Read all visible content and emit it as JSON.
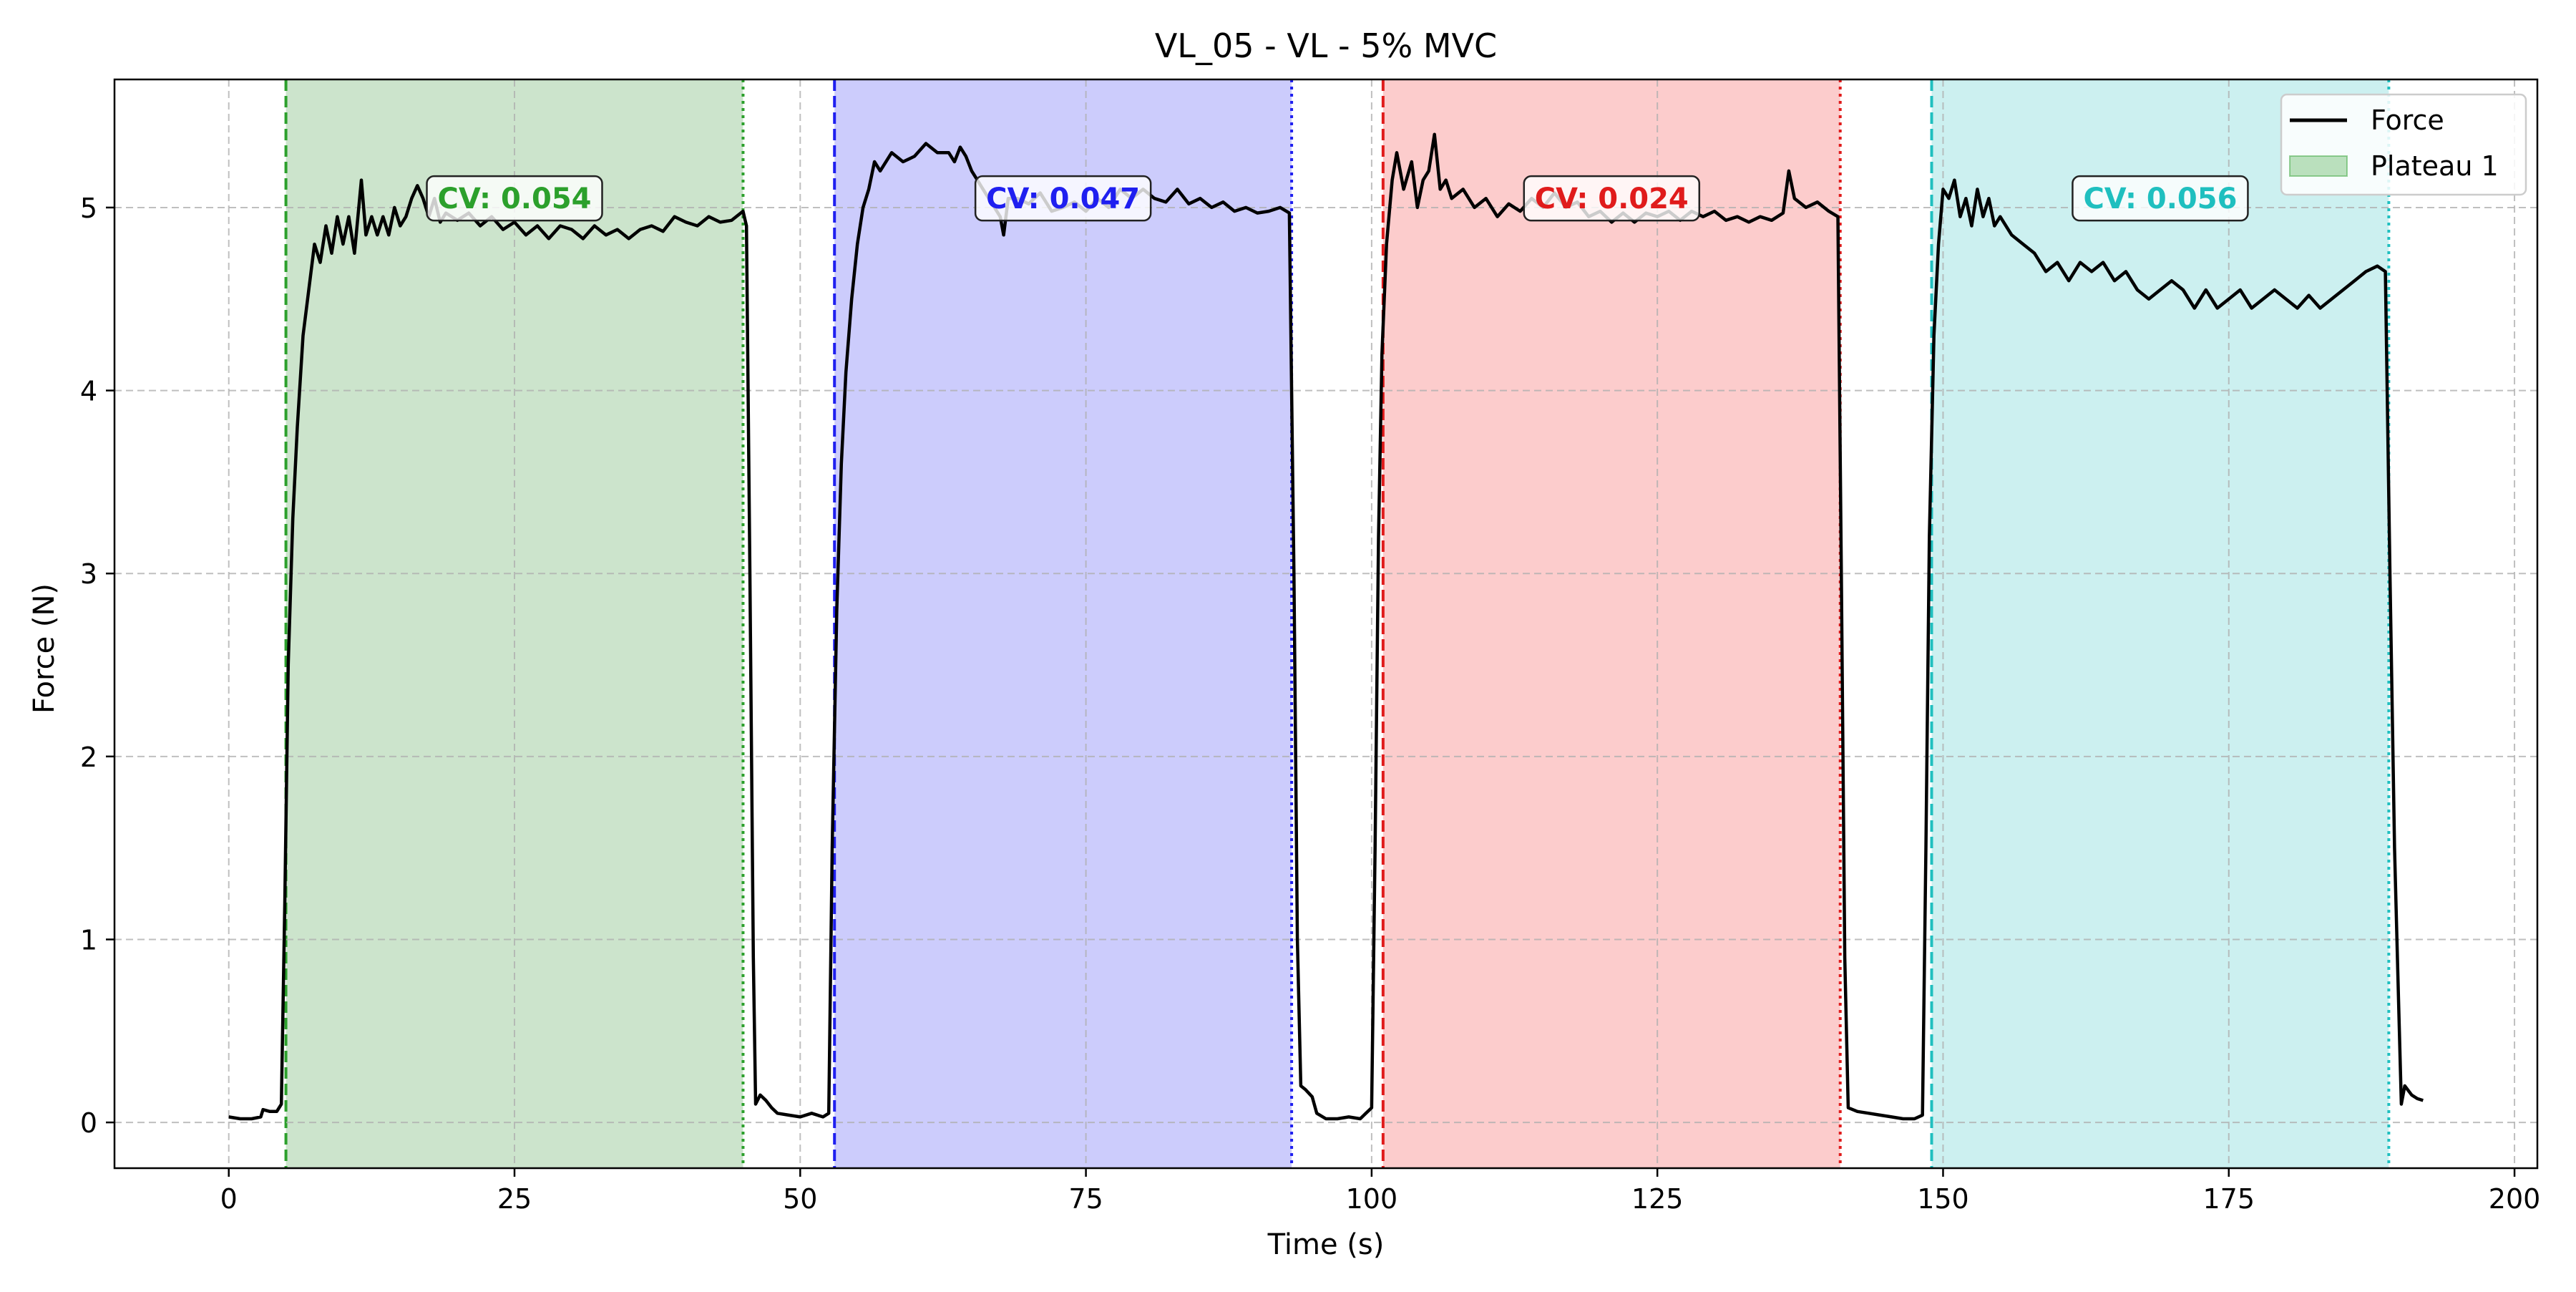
{
  "chart_data": {
    "type": "line",
    "title": "VL_05 - VL - 5% MVC",
    "xlabel": "Time (s)",
    "ylabel": "Force (N)",
    "xlim": [
      -10,
      202
    ],
    "ylim": [
      -0.25,
      5.7
    ],
    "xticks": [
      0,
      25,
      50,
      75,
      100,
      125,
      150,
      175,
      200
    ],
    "yticks": [
      0,
      1,
      2,
      3,
      4,
      5
    ],
    "grid": true,
    "legend": {
      "placement": "top-right",
      "entries": [
        {
          "label": "Force",
          "kind": "line",
          "color": "#000000"
        },
        {
          "label": "Plateau 1",
          "kind": "patch",
          "color": "#2ca02c"
        }
      ]
    },
    "series": [
      {
        "name": "Force",
        "color": "#000000",
        "points": [
          [
            0,
            0.03
          ],
          [
            1,
            0.02
          ],
          [
            2,
            0.02
          ],
          [
            2.8,
            0.03
          ],
          [
            3,
            0.07
          ],
          [
            3.6,
            0.06
          ],
          [
            4.2,
            0.06
          ],
          [
            4.6,
            0.1
          ],
          [
            4.9,
            1.2
          ],
          [
            5.2,
            2.5
          ],
          [
            5.6,
            3.3
          ],
          [
            6,
            3.8
          ],
          [
            6.5,
            4.3
          ],
          [
            7,
            4.55
          ],
          [
            7.5,
            4.8
          ],
          [
            8,
            4.7
          ],
          [
            8.5,
            4.9
          ],
          [
            9,
            4.75
          ],
          [
            9.5,
            4.95
          ],
          [
            10,
            4.8
          ],
          [
            10.5,
            4.95
          ],
          [
            11,
            4.75
          ],
          [
            11.6,
            5.15
          ],
          [
            12,
            4.85
          ],
          [
            12.5,
            4.95
          ],
          [
            13,
            4.85
          ],
          [
            13.5,
            4.95
          ],
          [
            14,
            4.85
          ],
          [
            14.5,
            5.0
          ],
          [
            15,
            4.9
          ],
          [
            15.5,
            4.95
          ],
          [
            16,
            5.05
          ],
          [
            16.5,
            5.12
          ],
          [
            17,
            5.05
          ],
          [
            17.5,
            4.95
          ],
          [
            18,
            5.05
          ],
          [
            18.5,
            4.92
          ],
          [
            19,
            4.97
          ],
          [
            20,
            4.93
          ],
          [
            21,
            4.97
          ],
          [
            22,
            4.9
          ],
          [
            23,
            4.95
          ],
          [
            24,
            4.88
          ],
          [
            25,
            4.92
          ],
          [
            26,
            4.85
          ],
          [
            27,
            4.9
          ],
          [
            28,
            4.83
          ],
          [
            29,
            4.9
          ],
          [
            30,
            4.88
          ],
          [
            31,
            4.83
          ],
          [
            32,
            4.9
          ],
          [
            33,
            4.85
          ],
          [
            34,
            4.88
          ],
          [
            35,
            4.83
          ],
          [
            36,
            4.88
          ],
          [
            37,
            4.9
          ],
          [
            38,
            4.87
          ],
          [
            39,
            4.95
          ],
          [
            40,
            4.92
          ],
          [
            41,
            4.9
          ],
          [
            42,
            4.95
          ],
          [
            43,
            4.92
          ],
          [
            44,
            4.93
          ],
          [
            45,
            4.98
          ],
          [
            45.3,
            4.9
          ],
          [
            45.6,
            3.0
          ],
          [
            45.9,
            0.9
          ],
          [
            46.1,
            0.1
          ],
          [
            46.5,
            0.15
          ],
          [
            47,
            0.12
          ],
          [
            47.5,
            0.08
          ],
          [
            48,
            0.05
          ],
          [
            49,
            0.04
          ],
          [
            50,
            0.03
          ],
          [
            51,
            0.05
          ],
          [
            52,
            0.03
          ],
          [
            52.5,
            0.05
          ],
          [
            52.8,
            1.5
          ],
          [
            53.2,
            2.8
          ],
          [
            53.6,
            3.6
          ],
          [
            54,
            4.1
          ],
          [
            54.5,
            4.5
          ],
          [
            55,
            4.8
          ],
          [
            55.5,
            5.0
          ],
          [
            56,
            5.1
          ],
          [
            56.5,
            5.25
          ],
          [
            57,
            5.2
          ],
          [
            58,
            5.3
          ],
          [
            59,
            5.25
          ],
          [
            60,
            5.28
          ],
          [
            61,
            5.35
          ],
          [
            62,
            5.3
          ],
          [
            63,
            5.3
          ],
          [
            63.5,
            5.25
          ],
          [
            64,
            5.33
          ],
          [
            64.5,
            5.28
          ],
          [
            65,
            5.2
          ],
          [
            65.5,
            5.15
          ],
          [
            66,
            5.1
          ],
          [
            66.5,
            5.05
          ],
          [
            67,
            5.0
          ],
          [
            67.5,
            4.95
          ],
          [
            67.8,
            4.85
          ],
          [
            68.2,
            5.05
          ],
          [
            69,
            5.05
          ],
          [
            70,
            5.02
          ],
          [
            71,
            5.08
          ],
          [
            72,
            4.98
          ],
          [
            73,
            5.0
          ],
          [
            74,
            5.03
          ],
          [
            75,
            4.98
          ],
          [
            76,
            5.05
          ],
          [
            77,
            5.0
          ],
          [
            78,
            5.1
          ],
          [
            79,
            5.05
          ],
          [
            80,
            5.1
          ],
          [
            81,
            5.05
          ],
          [
            82,
            5.03
          ],
          [
            83,
            5.1
          ],
          [
            84,
            5.02
          ],
          [
            85,
            5.05
          ],
          [
            86,
            5.0
          ],
          [
            87,
            5.03
          ],
          [
            88,
            4.98
          ],
          [
            89,
            5.0
          ],
          [
            90,
            4.97
          ],
          [
            91,
            4.98
          ],
          [
            92,
            5.0
          ],
          [
            92.8,
            4.97
          ],
          [
            93.2,
            3.0
          ],
          [
            93.5,
            1.0
          ],
          [
            93.8,
            0.2
          ],
          [
            94.2,
            0.18
          ],
          [
            94.8,
            0.14
          ],
          [
            95.2,
            0.05
          ],
          [
            96,
            0.02
          ],
          [
            97,
            0.02
          ],
          [
            98,
            0.03
          ],
          [
            99,
            0.02
          ],
          [
            99.5,
            0.05
          ],
          [
            100,
            0.08
          ],
          [
            100.3,
            1.5
          ],
          [
            100.6,
            3.2
          ],
          [
            100.9,
            4.2
          ],
          [
            101.3,
            4.8
          ],
          [
            101.8,
            5.15
          ],
          [
            102.2,
            5.3
          ],
          [
            102.8,
            5.1
          ],
          [
            103.5,
            5.25
          ],
          [
            104,
            5.0
          ],
          [
            104.5,
            5.15
          ],
          [
            105,
            5.2
          ],
          [
            105.5,
            5.4
          ],
          [
            106,
            5.1
          ],
          [
            106.5,
            5.15
          ],
          [
            107,
            5.05
          ],
          [
            108,
            5.1
          ],
          [
            109,
            5.0
          ],
          [
            110,
            5.05
          ],
          [
            111,
            4.95
          ],
          [
            112,
            5.02
          ],
          [
            113,
            4.98
          ],
          [
            114,
            5.05
          ],
          [
            115,
            5.0
          ],
          [
            116,
            5.08
          ],
          [
            117,
            5.0
          ],
          [
            118,
            5.03
          ],
          [
            119,
            4.95
          ],
          [
            120,
            4.98
          ],
          [
            121,
            4.92
          ],
          [
            122,
            4.97
          ],
          [
            123,
            4.92
          ],
          [
            124,
            4.97
          ],
          [
            125,
            4.95
          ],
          [
            126,
            4.98
          ],
          [
            127,
            4.93
          ],
          [
            128,
            4.98
          ],
          [
            129,
            4.95
          ],
          [
            130,
            4.98
          ],
          [
            131,
            4.93
          ],
          [
            132,
            4.95
          ],
          [
            133,
            4.92
          ],
          [
            134,
            4.95
          ],
          [
            135,
            4.93
          ],
          [
            136,
            4.97
          ],
          [
            136.5,
            5.2
          ],
          [
            137,
            5.05
          ],
          [
            138,
            5.0
          ],
          [
            139,
            5.03
          ],
          [
            140,
            4.98
          ],
          [
            140.8,
            4.95
          ],
          [
            141.1,
            3.0
          ],
          [
            141.4,
            0.9
          ],
          [
            141.7,
            0.08
          ],
          [
            142.5,
            0.06
          ],
          [
            143.5,
            0.05
          ],
          [
            144.5,
            0.04
          ],
          [
            145.5,
            0.03
          ],
          [
            146.5,
            0.02
          ],
          [
            147.5,
            0.02
          ],
          [
            148.2,
            0.04
          ],
          [
            148.5,
            1.5
          ],
          [
            148.8,
            3.2
          ],
          [
            149.2,
            4.3
          ],
          [
            149.6,
            4.8
          ],
          [
            150,
            5.1
          ],
          [
            150.5,
            5.05
          ],
          [
            151,
            5.15
          ],
          [
            151.5,
            4.95
          ],
          [
            152,
            5.05
          ],
          [
            152.5,
            4.9
          ],
          [
            153,
            5.1
          ],
          [
            153.5,
            4.95
          ],
          [
            154,
            5.05
          ],
          [
            154.5,
            4.9
          ],
          [
            155,
            4.95
          ],
          [
            156,
            4.85
          ],
          [
            157,
            4.8
          ],
          [
            158,
            4.75
          ],
          [
            159,
            4.65
          ],
          [
            160,
            4.7
          ],
          [
            161,
            4.6
          ],
          [
            162,
            4.7
          ],
          [
            163,
            4.65
          ],
          [
            164,
            4.7
          ],
          [
            165,
            4.6
          ],
          [
            166,
            4.65
          ],
          [
            167,
            4.55
          ],
          [
            168,
            4.5
          ],
          [
            169,
            4.55
          ],
          [
            170,
            4.6
          ],
          [
            171,
            4.55
          ],
          [
            172,
            4.45
          ],
          [
            173,
            4.55
          ],
          [
            174,
            4.45
          ],
          [
            175,
            4.5
          ],
          [
            176,
            4.55
          ],
          [
            177,
            4.45
          ],
          [
            178,
            4.5
          ],
          [
            179,
            4.55
          ],
          [
            180,
            4.5
          ],
          [
            181,
            4.45
          ],
          [
            182,
            4.52
          ],
          [
            183,
            4.45
          ],
          [
            184,
            4.5
          ],
          [
            185,
            4.55
          ],
          [
            186,
            4.6
          ],
          [
            187,
            4.65
          ],
          [
            188,
            4.68
          ],
          [
            188.7,
            4.65
          ],
          [
            189.1,
            3.0
          ],
          [
            189.5,
            1.5
          ],
          [
            189.8,
            0.8
          ],
          [
            190.1,
            0.1
          ],
          [
            190.4,
            0.2
          ],
          [
            191,
            0.15
          ],
          [
            191.5,
            0.13
          ],
          [
            192,
            0.12
          ]
        ]
      }
    ],
    "plateaus": [
      {
        "start": 5,
        "end": 45,
        "color": "#2ca02c",
        "fill": "#cce4cc",
        "label": "CV: 0.054",
        "label_x": 25,
        "label_y": 5.05
      },
      {
        "start": 53,
        "end": 93,
        "color": "#1f1ff0",
        "fill": "#ccccfc",
        "label": "CV: 0.047",
        "label_x": 73,
        "label_y": 5.05
      },
      {
        "start": 101,
        "end": 141,
        "color": "#e01b1b",
        "fill": "#fccccc",
        "label": "CV: 0.024",
        "label_x": 121,
        "label_y": 5.05
      },
      {
        "start": 149,
        "end": 189,
        "color": "#1fbfbf",
        "fill": "#ccf0f0",
        "label": "CV: 0.056",
        "label_x": 169,
        "label_y": 5.05
      }
    ]
  }
}
